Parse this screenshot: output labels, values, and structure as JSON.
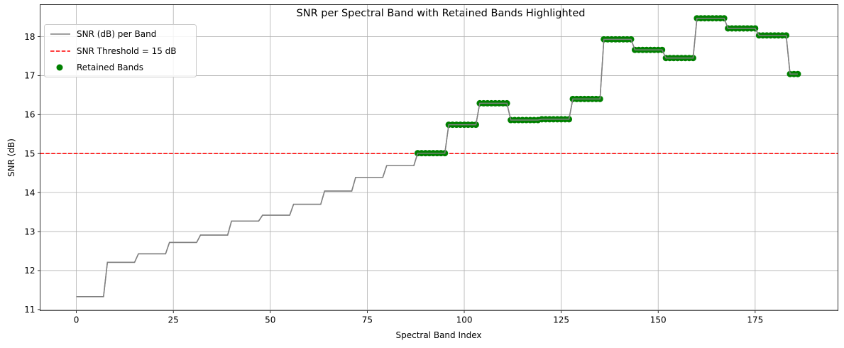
{
  "chart_data": {
    "type": "line",
    "title": "SNR per Spectral Band with Retained Bands Highlighted",
    "xlabel": "Spectral Band Index",
    "ylabel": "SNR (dB)",
    "xlim": [
      -9.35,
      196.35
    ],
    "ylim": [
      10.97,
      18.82
    ],
    "xticks": [
      0,
      25,
      50,
      75,
      100,
      125,
      150,
      175
    ],
    "yticks": [
      11,
      12,
      13,
      14,
      15,
      16,
      17,
      18
    ],
    "grid": true,
    "legend_placement": "top-left",
    "threshold": {
      "name": "SNR Threshold = 15 dB",
      "value": 15,
      "color": "#ff0000",
      "style": "dashed"
    },
    "line_series": {
      "name": "SNR (dB) per Band",
      "color": "#808080"
    },
    "retained_series": {
      "name": "Retained Bands",
      "color": "#008000"
    },
    "band_count": 187,
    "group_size": 8,
    "group_snr": [
      11.33,
      12.21,
      12.43,
      12.72,
      12.91,
      13.27,
      13.42,
      13.7,
      14.04,
      14.39,
      14.69,
      15.01,
      15.74,
      16.29,
      15.86,
      15.88,
      16.4,
      17.93,
      17.66,
      17.45,
      18.47,
      18.21,
      18.03,
      17.04
    ]
  }
}
